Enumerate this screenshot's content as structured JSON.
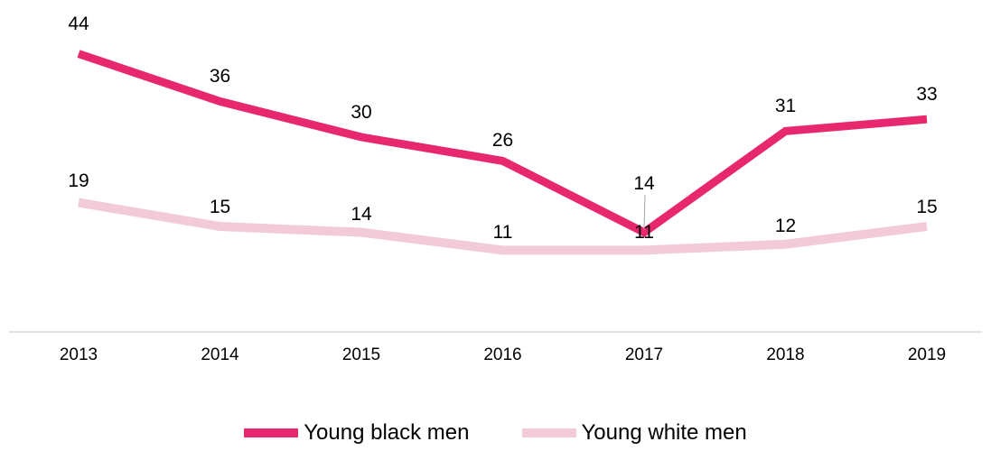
{
  "chart_data": {
    "type": "line",
    "categories": [
      "2013",
      "2014",
      "2015",
      "2016",
      "2017",
      "2018",
      "2019"
    ],
    "series": [
      {
        "name": "Young black men",
        "values": [
          44,
          36,
          30,
          26,
          14,
          31,
          33
        ],
        "color": "#e8286e"
      },
      {
        "name": "Young white men",
        "values": [
          19,
          15,
          14,
          11,
          11,
          12,
          15
        ],
        "color": "#f3cad8"
      }
    ],
    "ylim": [
      0,
      45
    ],
    "grid": false,
    "legend_position": "bottom"
  },
  "legend": {
    "items": [
      {
        "label": "Young black men",
        "color": "#e8286e"
      },
      {
        "label": "Young white men",
        "color": "#f3cad8"
      }
    ]
  }
}
